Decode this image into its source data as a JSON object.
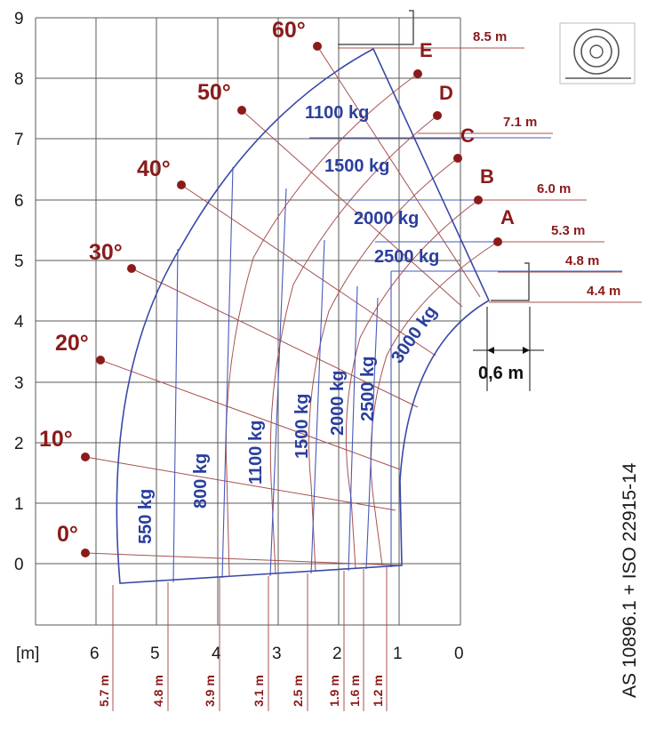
{
  "diagram": {
    "unit_label": "[m]",
    "x_ticks": [
      "6",
      "5",
      "4",
      "3",
      "2",
      "1",
      "0"
    ],
    "y_ticks": [
      "0",
      "1",
      "2",
      "3",
      "4",
      "5",
      "6",
      "7",
      "8",
      "9"
    ],
    "angles": [
      "0°",
      "10°",
      "20°",
      "30°",
      "40°",
      "50°",
      "60°"
    ],
    "boom_letters": [
      "A",
      "B",
      "C",
      "D",
      "E"
    ],
    "heights": [
      "8.5 m",
      "7.1 m",
      "6.0 m",
      "5.3 m",
      "4.8 m",
      "4.4 m"
    ],
    "upper_loads": [
      "1100 kg",
      "1500 kg",
      "2000 kg",
      "2500 kg"
    ],
    "vertical_loads": [
      "550 kg",
      "800 kg",
      "1100 kg",
      "1500 kg",
      "2000 kg",
      "2500 kg",
      "3000 kg"
    ],
    "reach_labels": [
      "5.7 m",
      "4.8 m",
      "3.9 m",
      "3.1 m",
      "2.5 m",
      "1.9 m",
      "1.6 m",
      "1.2 m"
    ],
    "offset_label": "0,6 m",
    "standard": "AS 10896.1 + ISO 22915-14",
    "colors": {
      "load": "#2a3f9e",
      "dimension": "#8b1a1a",
      "grid": "#5a5a5a"
    }
  }
}
